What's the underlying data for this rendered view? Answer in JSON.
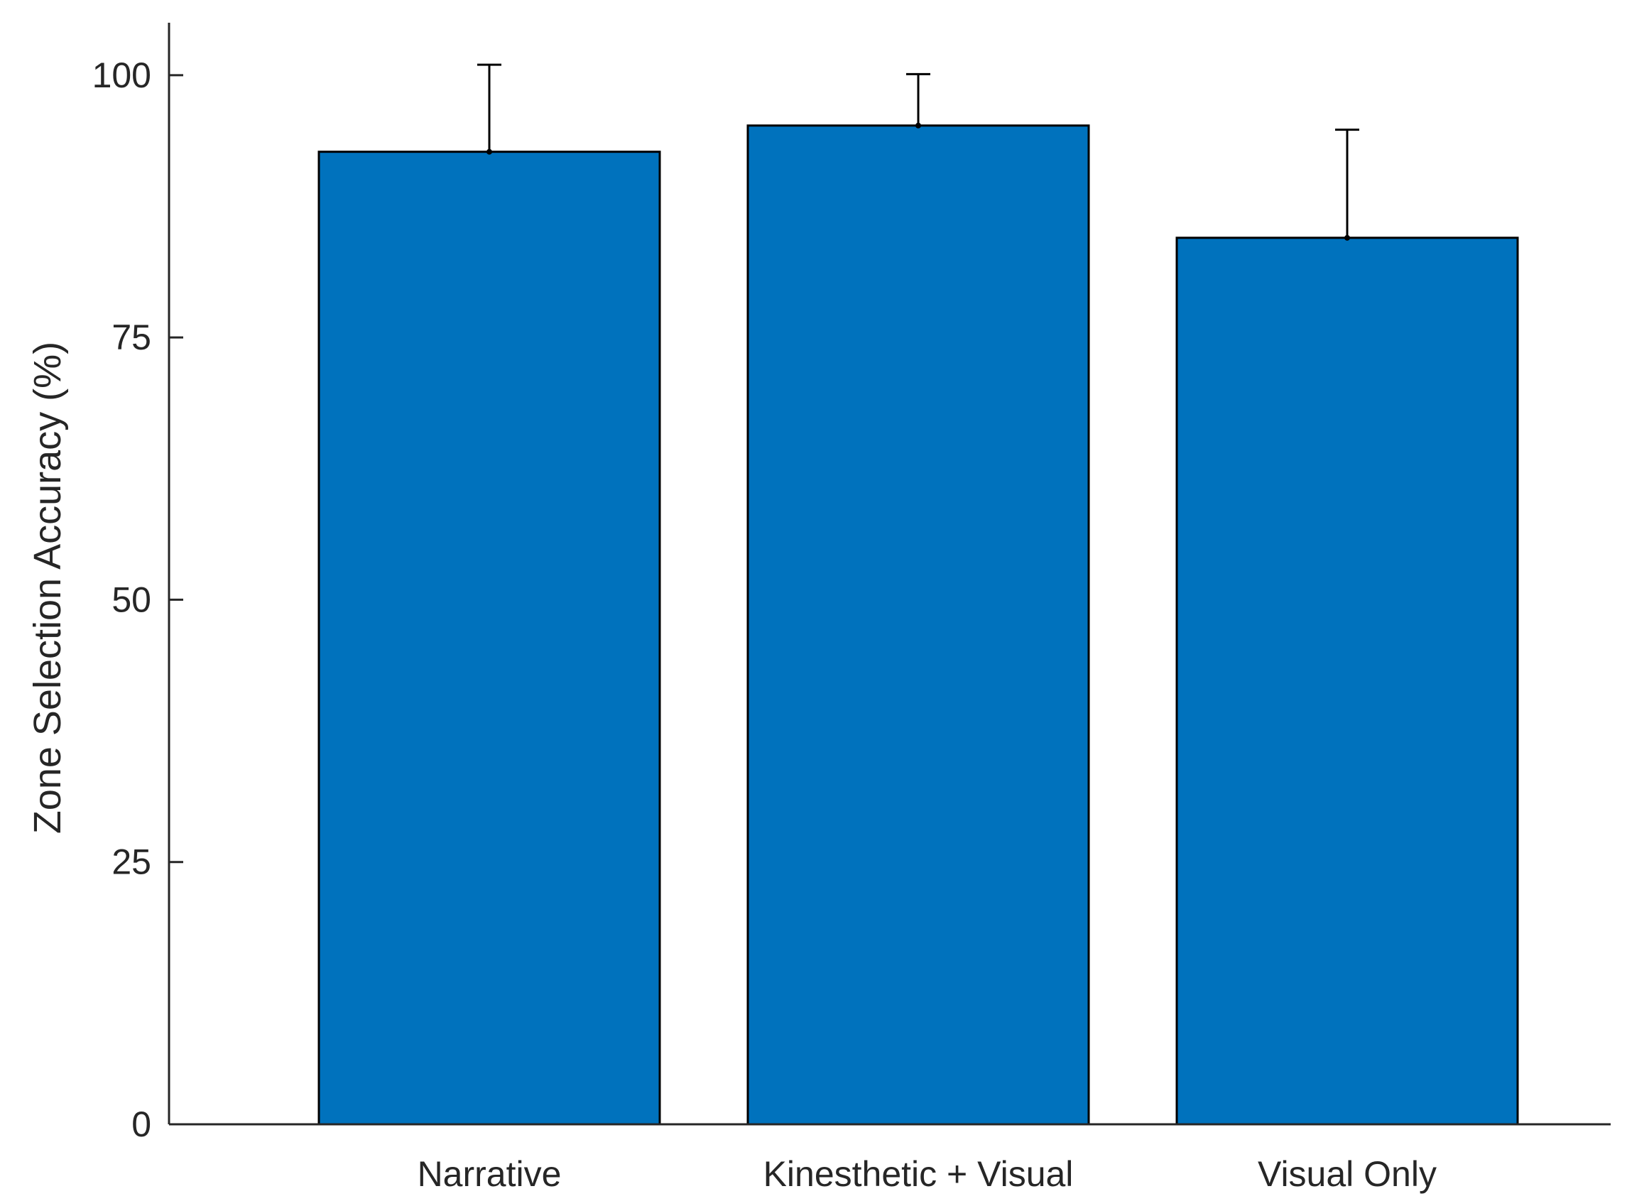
{
  "chart_data": {
    "type": "bar",
    "title": "",
    "xlabel": "",
    "ylabel": "Zone Selection Accuracy (%)",
    "categories": [
      "Narrative",
      "Kinesthetic + Visual",
      "Visual Only"
    ],
    "values": [
      92.7,
      95.2,
      84.5
    ],
    "error_upper": [
      8.3,
      4.9,
      10.3
    ],
    "ylim": [
      0,
      105
    ],
    "yticks": [
      0,
      25,
      50,
      75,
      100
    ],
    "ytick_labels": [
      "0",
      "25",
      "50",
      "75",
      "100"
    ],
    "grid": false,
    "bar_color": "#0072BD",
    "edge_color": "#000000"
  }
}
